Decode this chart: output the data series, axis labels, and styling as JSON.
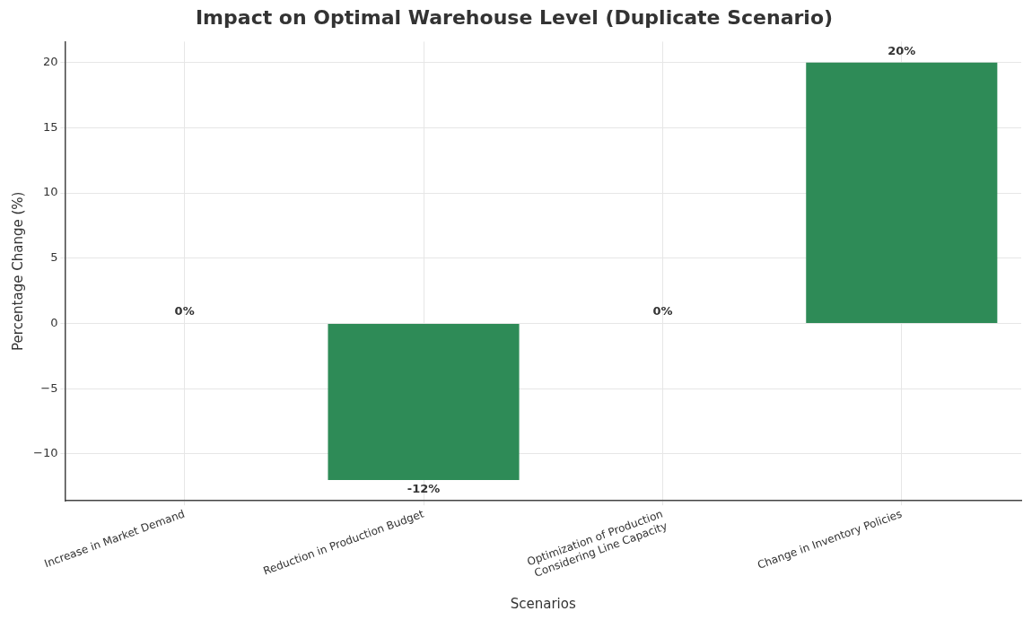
{
  "chart_data": {
    "type": "bar",
    "title": "Impact on Optimal Warehouse Level (Duplicate Scenario)",
    "xlabel": "Scenarios",
    "ylabel": "Percentage Change (%)",
    "categories": [
      "Increase in Market Demand",
      "Reduction in Production Budget",
      "Optimization of Production\nConsidering Line Capacity",
      "Change in Inventory Policies"
    ],
    "values": [
      0,
      -12,
      0,
      20
    ],
    "color": "#2e8b57",
    "value_labels": [
      "0%",
      "-12%",
      "0%",
      "20%"
    ],
    "ylim": [
      -13.6,
      21.6
    ],
    "yticks": [
      -10,
      -5,
      0,
      5,
      10,
      15,
      20
    ],
    "grid": true
  }
}
